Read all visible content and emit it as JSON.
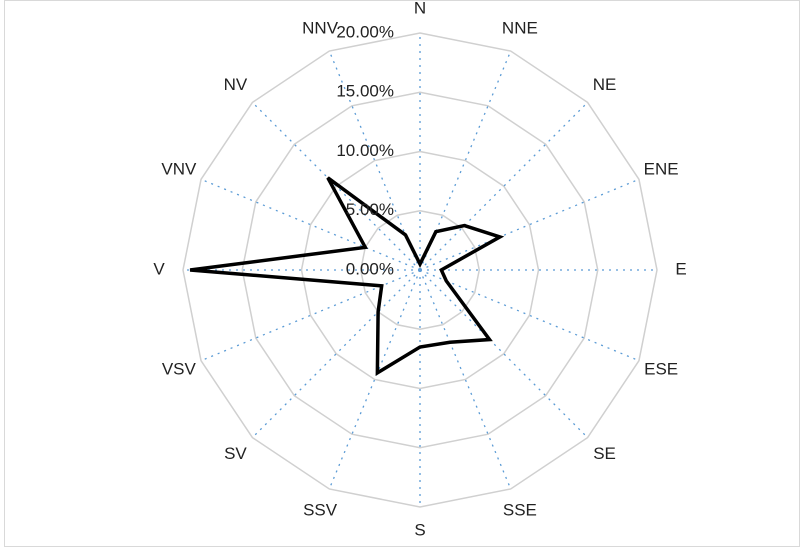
{
  "chart_data": {
    "type": "radar",
    "categories": [
      "N",
      "NNE",
      "NE",
      "ENE",
      "E",
      "ESE",
      "SE",
      "SSE",
      "S",
      "SSV",
      "SV",
      "VSV",
      "V",
      "VNV",
      "NV",
      "NNV"
    ],
    "values": [
      0.5,
      3.5,
      5.3,
      7.3,
      1.8,
      2.4,
      8.3,
      6.6,
      6.5,
      9.4,
      5,
      3.5,
      19.4,
      5,
      11,
      3.2
    ],
    "color": "#000000",
    "ylim": [
      0,
      20
    ],
    "yticks": [
      {
        "value": 0,
        "label": "0.00%"
      },
      {
        "value": 5,
        "label": "5.00%"
      },
      {
        "value": 10,
        "label": "10.00%"
      },
      {
        "value": 15,
        "label": "15.00%"
      },
      {
        "value": 20,
        "label": "20.00%"
      }
    ],
    "grid": true
  }
}
